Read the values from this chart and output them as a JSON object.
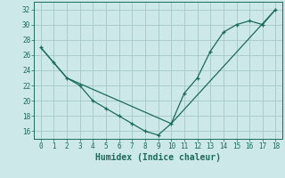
{
  "xlabel": "Humidex (Indice chaleur)",
  "bg_color": "#cce8e8",
  "line_color": "#1a6b5a",
  "grid_color": "#aacccc",
  "xlim": [
    -0.5,
    18.5
  ],
  "ylim": [
    15,
    33
  ],
  "yticks": [
    16,
    18,
    20,
    22,
    24,
    26,
    28,
    30,
    32
  ],
  "xticks": [
    0,
    1,
    2,
    3,
    4,
    5,
    6,
    7,
    8,
    9,
    10,
    11,
    12,
    13,
    14,
    15,
    16,
    17,
    18
  ],
  "line1_x": [
    0,
    1,
    2,
    3,
    4,
    5,
    6,
    7,
    8,
    9,
    10,
    11,
    12,
    13,
    14,
    15,
    16,
    17,
    18
  ],
  "line1_y": [
    27,
    25,
    23,
    22,
    20,
    19,
    18,
    17,
    16,
    15.5,
    17,
    21,
    23,
    26.5,
    29,
    30,
    30.5,
    30,
    32
  ],
  "line2_x": [
    0,
    2,
    10,
    18
  ],
  "line2_y": [
    27,
    23,
    17,
    32
  ],
  "tick_fontsize": 5.5,
  "xlabel_fontsize": 7
}
